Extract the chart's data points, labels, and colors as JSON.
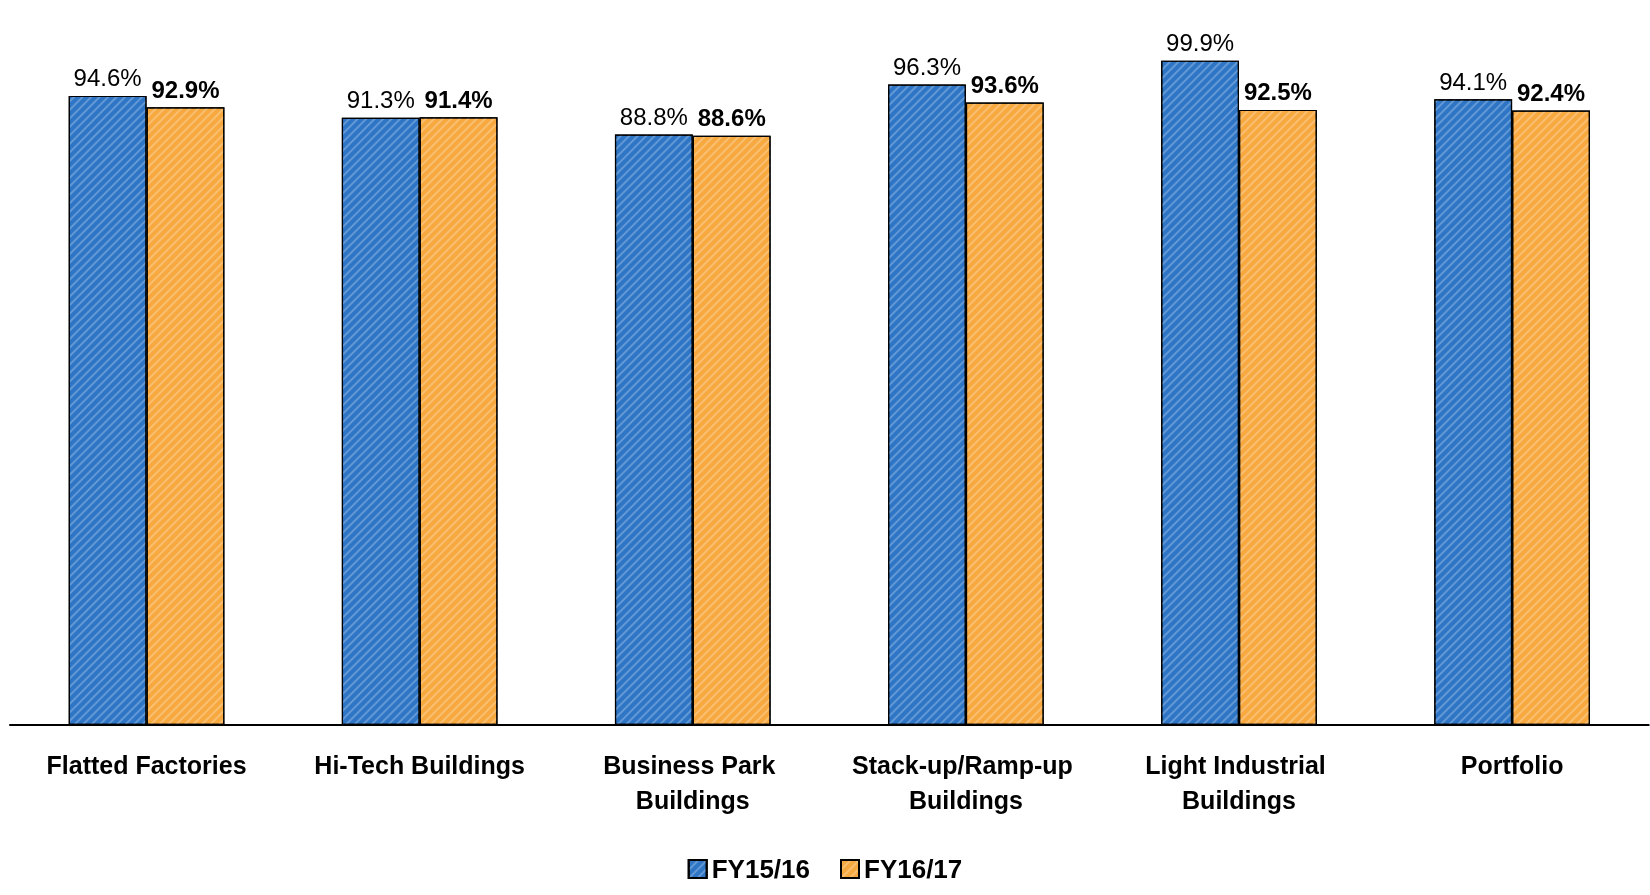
{
  "chart_data": {
    "type": "bar",
    "categories": [
      "Flatted Factories",
      "Hi-Tech Buildings",
      "Business Park Buildings",
      "Stack-up/Ramp-up Buildings",
      "Light Industrial Buildings",
      "Portfolio"
    ],
    "series": [
      {
        "name": "FY15/16",
        "color": "#2e75c6",
        "values": [
          94.6,
          91.3,
          88.8,
          96.3,
          99.9,
          94.1
        ],
        "value_labels": [
          "94.6%",
          "91.3%",
          "88.8%",
          "96.3%",
          "99.9%",
          "94.1%"
        ]
      },
      {
        "name": "FY16/17",
        "color": "#f7a940",
        "values": [
          92.9,
          91.4,
          88.6,
          93.6,
          92.5,
          92.4
        ],
        "value_labels": [
          "92.9%",
          "91.4%",
          "88.6%",
          "93.6%",
          "92.5%",
          "92.4%"
        ]
      }
    ],
    "legend": "bottom",
    "grid": false
  }
}
